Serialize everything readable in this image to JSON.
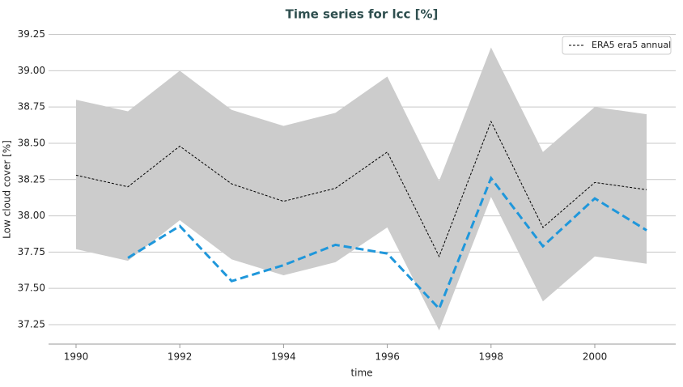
{
  "chart_data": {
    "type": "line",
    "title": "Time series for lcc [%]",
    "xlabel": "time",
    "ylabel": "Low cloud cover [%]",
    "x": [
      1990,
      1991,
      1992,
      1993,
      1994,
      1995,
      1996,
      1997,
      1998,
      1999,
      2000,
      2001
    ],
    "series": [
      {
        "name": "ERA5 era5 annual",
        "color": "#000000",
        "dash": "3,2",
        "width": 1,
        "values": [
          38.28,
          38.2,
          38.48,
          38.22,
          38.1,
          38.19,
          38.44,
          37.72,
          38.65,
          37.92,
          38.23,
          38.18
        ]
      },
      {
        "color": "#1f97db",
        "dash": "10,5",
        "width": 3,
        "values": [
          null,
          37.71,
          37.93,
          37.55,
          37.66,
          37.8,
          37.74,
          37.36,
          38.26,
          37.79,
          38.12,
          37.9
        ]
      }
    ],
    "band": {
      "color": "#cccccc",
      "upper": [
        38.8,
        38.72,
        39.0,
        38.73,
        38.62,
        38.71,
        38.96,
        38.24,
        39.16,
        38.44,
        38.75,
        38.7
      ],
      "lower": [
        37.77,
        37.69,
        37.97,
        37.7,
        37.59,
        37.68,
        37.92,
        37.21,
        38.13,
        37.41,
        37.72,
        37.67
      ]
    },
    "xlim": [
      1989.47,
      2001.56
    ],
    "xticks": [
      1990,
      1992,
      1994,
      1996,
      1998,
      2000
    ],
    "ylim": [
      37.116,
      39.32
    ],
    "yticks": [
      {
        "value": 37.25,
        "label": "37.25"
      },
      {
        "value": 37.5,
        "label": "37.50"
      },
      {
        "value": 37.75,
        "label": "37.75"
      },
      {
        "value": 38,
        "label": "38.00"
      },
      {
        "value": 38.25,
        "label": "38.25"
      },
      {
        "value": 38.5,
        "label": "38.50"
      },
      {
        "value": 38.75,
        "label": "38.75"
      },
      {
        "value": 39,
        "label": "39.00"
      },
      {
        "value": 39.25,
        "label": "39.25"
      }
    ],
    "grid": true,
    "legend": "upper right"
  }
}
